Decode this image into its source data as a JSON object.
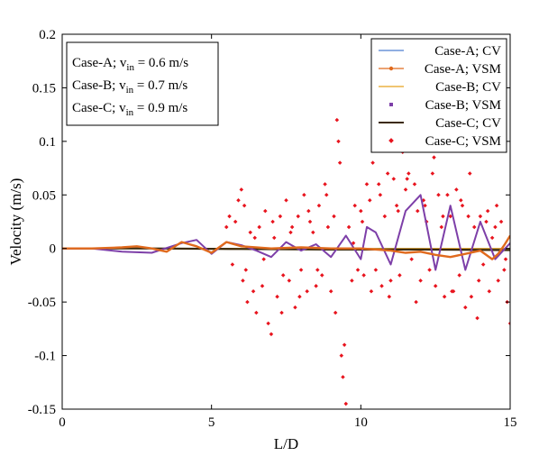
{
  "chart_data": {
    "type": "line",
    "title": "",
    "xlabel": "L/D",
    "ylabel": "Velocity (m/s)",
    "xlim": [
      0,
      15
    ],
    "ylim": [
      -0.15,
      0.2
    ],
    "xticks": [
      0,
      5,
      10,
      15
    ],
    "yticks": [
      -0.15,
      -0.1,
      -0.05,
      0,
      0.05,
      0.1,
      0.15,
      0.2
    ],
    "ytick_labels": [
      "-0.15",
      "-0.1",
      "-0.05",
      "0",
      "0.05",
      "0.1",
      "0.15",
      "0.2"
    ],
    "grid": false,
    "legend_position": "top-right",
    "annotation": [
      {
        "case": "Case-A",
        "sym": "v",
        "sub": "in",
        "value": "= 0.6 m/s"
      },
      {
        "case": "Case-B",
        "sym": "v",
        "sub": "in",
        "value": "= 0.7 m/s"
      },
      {
        "case": "Case-C",
        "sym": "v",
        "sub": "in",
        "value": "= 0.9 m/s"
      }
    ],
    "series": [
      {
        "name": "Case-A; CV",
        "style": "line",
        "color": "#4d7fd1",
        "width": 1.2,
        "x": [
          0,
          2,
          4,
          6,
          8,
          10,
          12,
          14,
          15
        ],
        "y": [
          0,
          0,
          0,
          0,
          0.0005,
          0,
          -0.0005,
          0,
          0
        ]
      },
      {
        "name": "Case-A; VSM",
        "style": "line",
        "color": "#e06a1d",
        "width": 2.4,
        "x": [
          0,
          1,
          2,
          2.5,
          3,
          3.5,
          4,
          4.5,
          5,
          5.5,
          6,
          7,
          8,
          9,
          10,
          11,
          11.5,
          12,
          12.5,
          13,
          13.5,
          14,
          14.4,
          14.6,
          14.8,
          15
        ],
        "y": [
          0,
          0,
          0.001,
          0.002,
          0,
          -0.003,
          0.006,
          0.002,
          -0.004,
          0.006,
          0.002,
          0,
          0.001,
          0,
          0,
          -0.002,
          -0.004,
          -0.003,
          -0.006,
          -0.008,
          -0.005,
          -0.002,
          -0.01,
          -0.005,
          0.003,
          0.012
        ]
      },
      {
        "name": "Case-B; CV",
        "style": "line",
        "color": "#e6a21f",
        "width": 1.2,
        "x": [
          0,
          3,
          6,
          9,
          12,
          15
        ],
        "y": [
          0,
          0,
          0,
          0,
          0,
          0
        ]
      },
      {
        "name": "Case-B; VSM",
        "style": "line",
        "color": "#7d3fa8",
        "width": 2.0,
        "x": [
          0,
          1,
          2,
          3,
          4,
          4.5,
          5,
          5.5,
          6,
          6.5,
          7,
          7.5,
          8,
          8.5,
          9,
          9.5,
          10,
          10.2,
          10.5,
          11,
          11.5,
          12,
          12.5,
          13,
          13.5,
          14,
          14.5,
          15
        ],
        "y": [
          0,
          0,
          -0.003,
          -0.004,
          0.005,
          0.008,
          -0.005,
          0.006,
          0.003,
          -0.002,
          -0.008,
          0.006,
          -0.002,
          0.004,
          -0.008,
          0.012,
          -0.01,
          0.02,
          0.015,
          -0.015,
          0.035,
          0.05,
          -0.02,
          0.04,
          -0.02,
          0.025,
          -0.01,
          0.005
        ]
      },
      {
        "name": "Case-C; CV",
        "style": "line",
        "color": "#3b2a0a",
        "width": 2.2,
        "x": [
          0,
          3,
          6,
          9,
          12,
          15
        ],
        "y": [
          0,
          0,
          -0.0005,
          -0.001,
          -0.001,
          -0.0015
        ]
      },
      {
        "name": "Case-C; VSM",
        "style": "dots",
        "color": "#e8141e",
        "x": [
          5.5,
          5.6,
          5.7,
          5.8,
          5.9,
          6.0,
          6.05,
          6.1,
          6.2,
          6.3,
          6.4,
          6.5,
          6.6,
          6.7,
          6.8,
          6.9,
          7.0,
          7.1,
          7.2,
          7.3,
          7.4,
          7.5,
          7.6,
          7.7,
          7.8,
          7.9,
          8.0,
          8.1,
          8.2,
          8.3,
          8.4,
          8.5,
          8.6,
          8.7,
          8.8,
          8.9,
          9.0,
          9.1,
          9.2,
          9.25,
          9.3,
          9.35,
          9.4,
          9.5,
          9.6,
          9.7,
          9.8,
          9.9,
          10.0,
          10.1,
          10.2,
          10.3,
          10.4,
          10.5,
          10.6,
          10.7,
          10.8,
          10.9,
          11.0,
          11.1,
          11.2,
          11.3,
          11.4,
          11.5,
          11.6,
          11.7,
          11.8,
          11.9,
          12.0,
          12.1,
          12.2,
          12.3,
          12.4,
          12.5,
          12.6,
          12.7,
          12.8,
          12.9,
          13.0,
          13.1,
          13.2,
          13.3,
          13.4,
          13.5,
          13.6,
          13.7,
          13.8,
          13.9,
          14.0,
          14.1,
          14.2,
          14.3,
          14.4,
          14.5,
          14.6,
          14.7,
          14.8,
          14.9,
          15.0,
          6.15,
          6.45,
          6.75,
          7.05,
          7.35,
          7.65,
          7.95,
          8.25,
          8.55,
          8.85,
          9.15,
          9.45,
          9.75,
          10.05,
          10.35,
          10.65,
          10.95,
          11.25,
          11.55,
          11.85,
          12.15,
          12.45,
          12.75,
          13.05,
          13.35,
          13.65,
          13.95,
          14.25,
          14.55,
          14.85
        ],
        "y": [
          0.02,
          0.03,
          -0.015,
          0.025,
          0.045,
          0.055,
          -0.03,
          0.04,
          -0.05,
          0.015,
          -0.04,
          -0.06,
          0.02,
          -0.035,
          0.035,
          -0.07,
          -0.08,
          0.01,
          -0.045,
          0.03,
          -0.025,
          0.045,
          -0.03,
          0.02,
          -0.055,
          0.03,
          -0.02,
          0.05,
          -0.04,
          0.025,
          0.015,
          -0.035,
          0.04,
          -0.025,
          0.06,
          0.02,
          -0.04,
          0.03,
          0.12,
          0.1,
          0.08,
          -0.1,
          -0.12,
          -0.145,
          0.02,
          -0.03,
          0.04,
          -0.02,
          0.035,
          -0.025,
          0.06,
          0.045,
          0.08,
          -0.02,
          0.06,
          -0.035,
          0.03,
          0.07,
          -0.03,
          0.065,
          0.04,
          -0.025,
          0.09,
          0.055,
          0.07,
          -0.01,
          0.06,
          0.035,
          -0.03,
          0.045,
          0.025,
          -0.02,
          0.07,
          -0.035,
          0.05,
          0.02,
          -0.045,
          0.05,
          0.03,
          -0.04,
          0.055,
          -0.025,
          0.04,
          -0.055,
          0.03,
          -0.045,
          0.02,
          -0.065,
          0.03,
          -0.015,
          0.025,
          -0.04,
          0.01,
          0.02,
          -0.03,
          0.025,
          -0.02,
          -0.05,
          -0.07,
          -0.02,
          0.01,
          -0.01,
          0.025,
          -0.06,
          0.015,
          -0.045,
          0.035,
          -0.02,
          0.05,
          -0.06,
          -0.09,
          0.005,
          0.025,
          -0.04,
          0.05,
          -0.045,
          0.035,
          0.065,
          -0.05,
          0.04,
          0.085,
          0.03,
          -0.04,
          0.045,
          0.07,
          -0.03,
          0.035,
          0.04,
          -0.01
        ]
      }
    ]
  }
}
